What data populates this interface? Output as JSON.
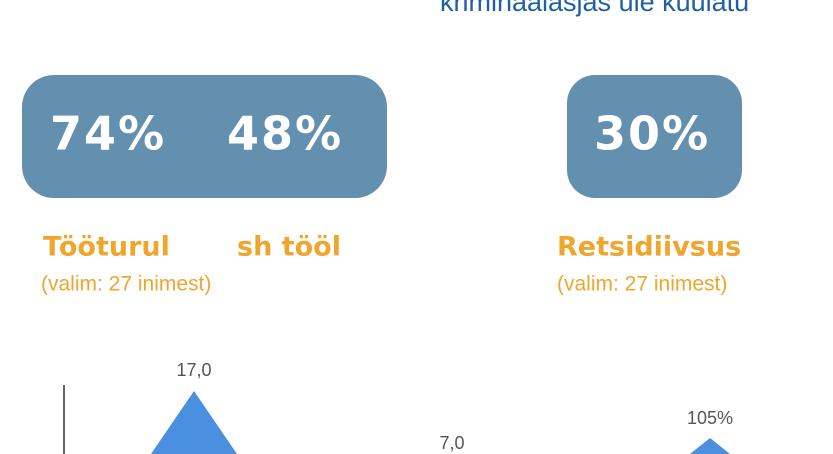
{
  "header": {
    "title": "kriminaalasjas üle kuulatu"
  },
  "stats": [
    {
      "values": [
        "74%",
        "48%"
      ],
      "labels": [
        "Tööturul",
        "sh tööl"
      ],
      "note": "(valim: 27 inimest)"
    },
    {
      "values": [
        "30%"
      ],
      "labels": [
        "Retsidiivsus"
      ],
      "note": "(valim: 27 inimest)"
    }
  ],
  "chart_labels": [
    "17,0",
    "7,0",
    "105%"
  ]
}
